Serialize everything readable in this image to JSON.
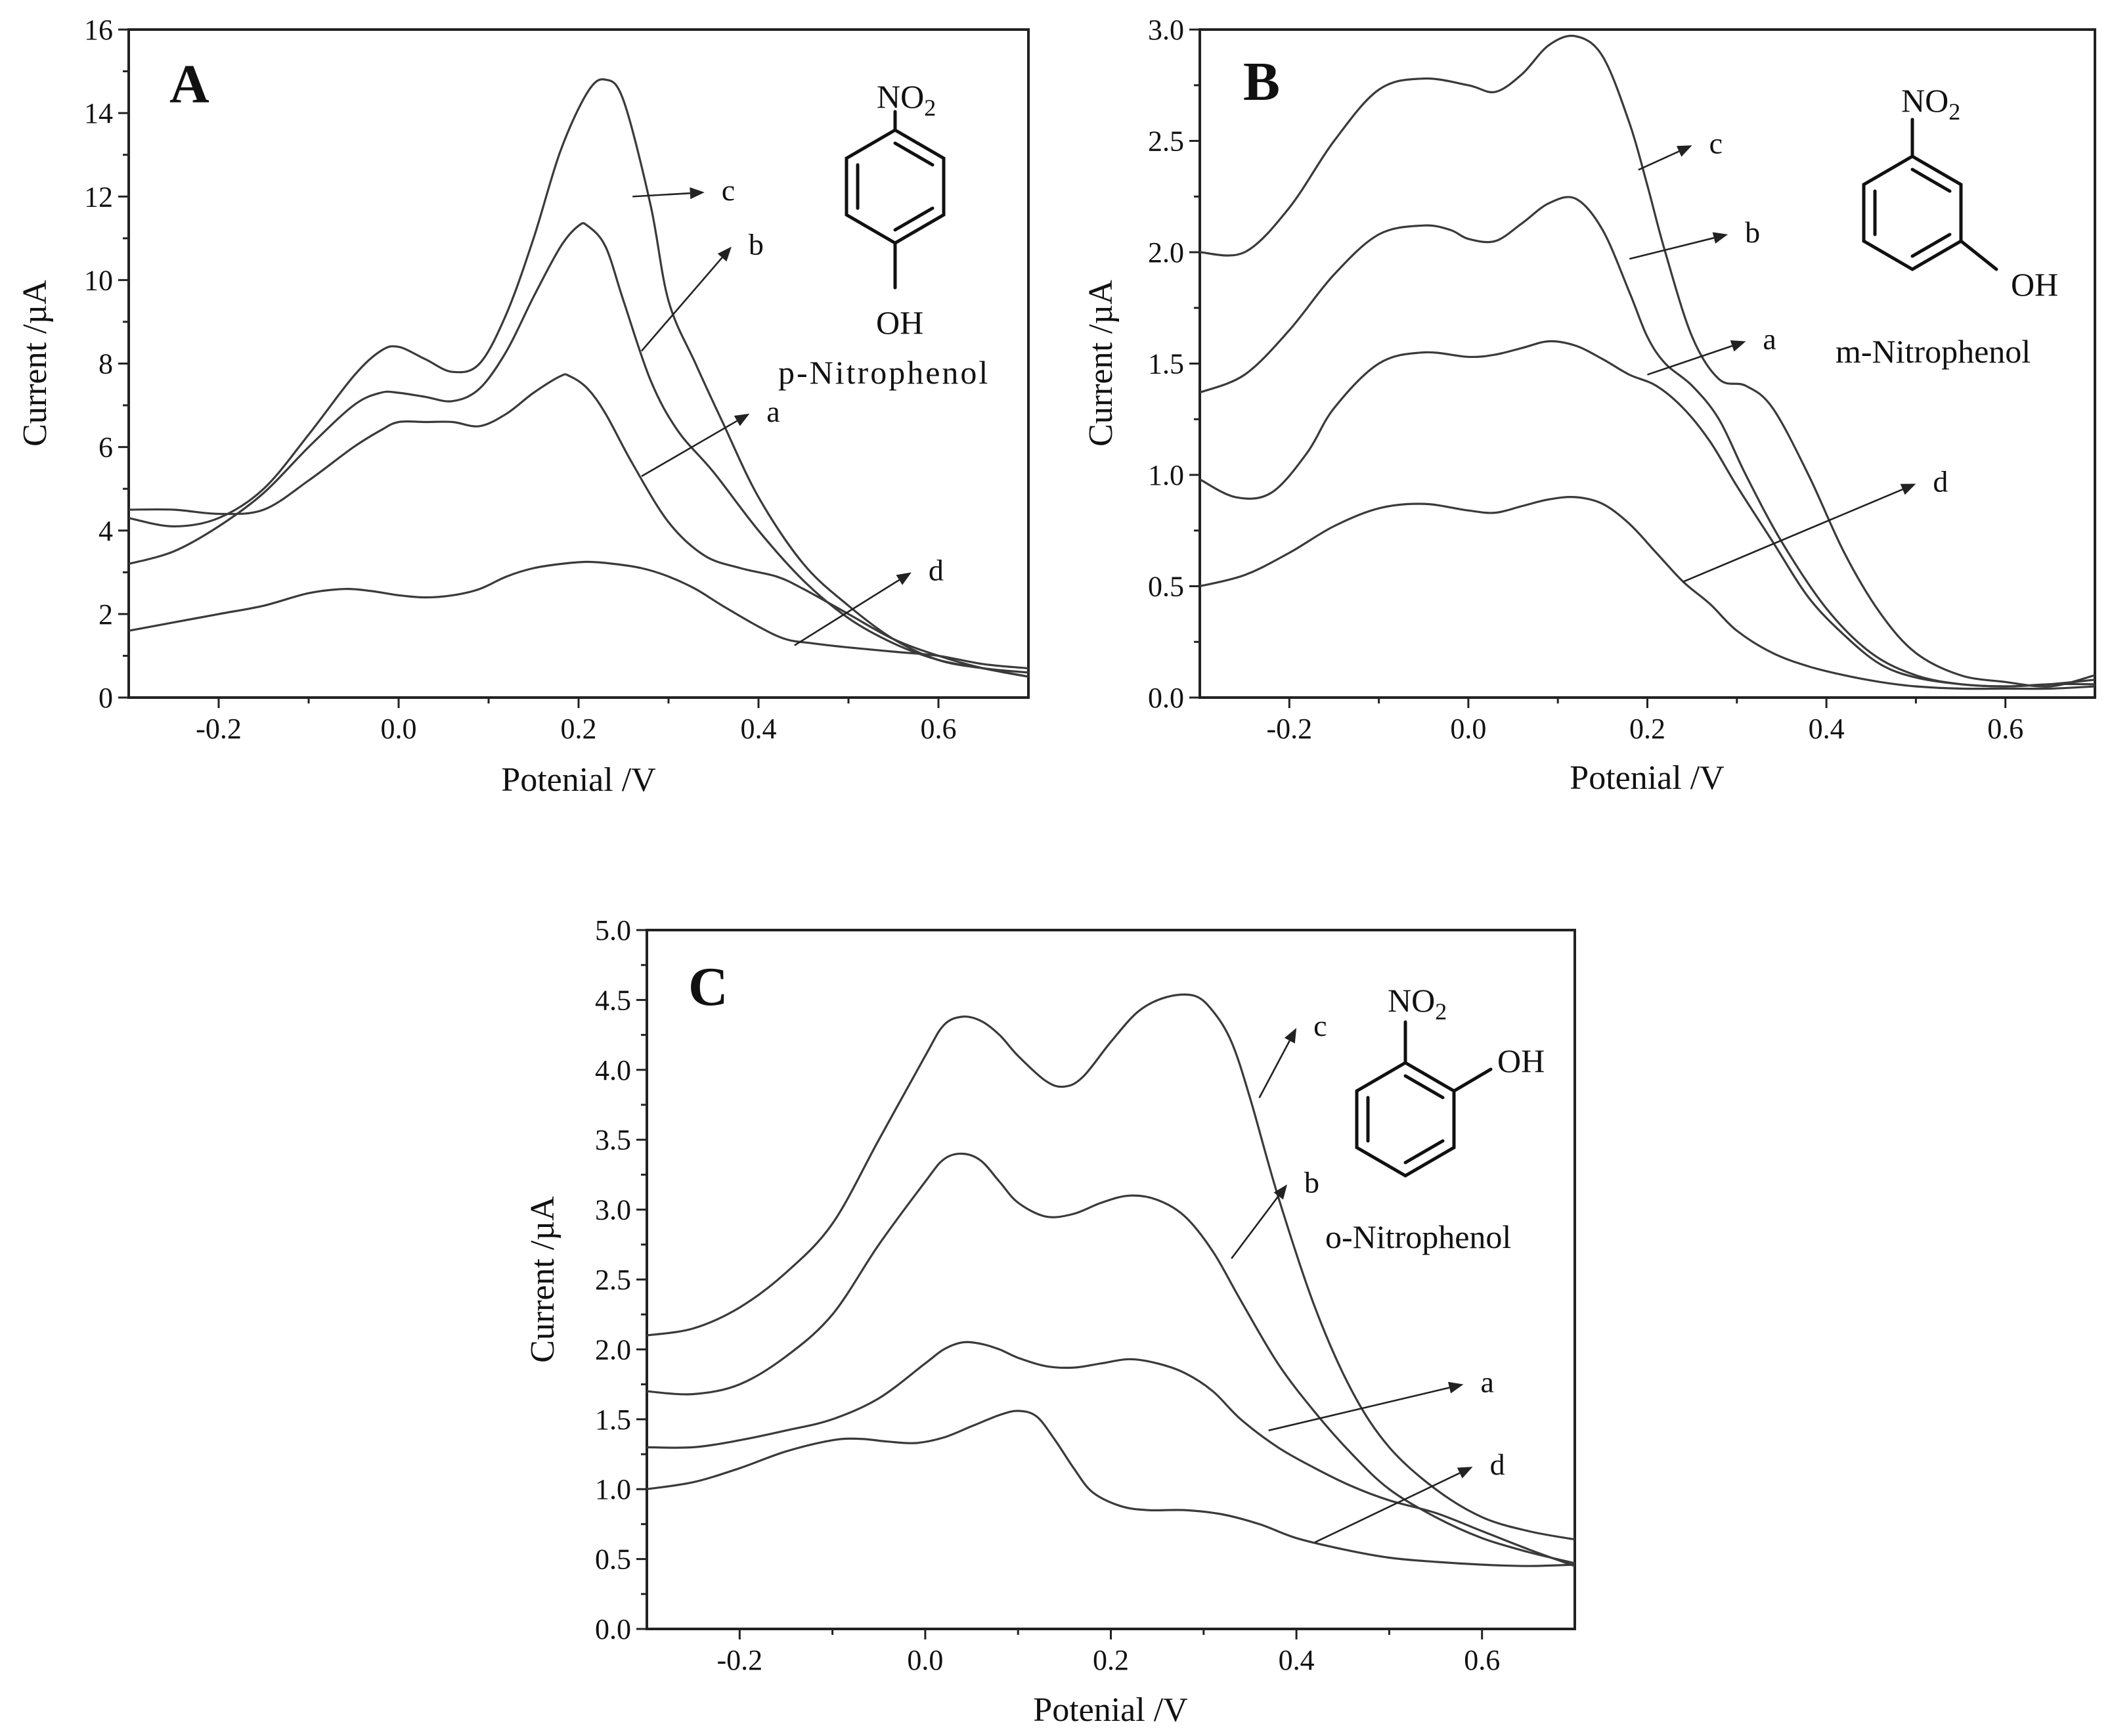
{
  "chart_data": [
    {
      "type": "line",
      "panel_label": "A",
      "xlabel": "Potenial /V",
      "ylabel": "Current /µA",
      "xlim": [
        -0.3,
        0.7
      ],
      "ylim": [
        0,
        16
      ],
      "x_ticks": [
        -0.2,
        0.0,
        0.2,
        0.4,
        0.6
      ],
      "x_tick_labels": [
        "-0.2",
        "0.0",
        "0.2",
        "0.4",
        "0.6"
      ],
      "y_ticks": [
        0,
        2,
        4,
        6,
        8,
        10,
        12,
        14,
        16
      ],
      "y_tick_labels": [
        "0",
        "2",
        "4",
        "6",
        "8",
        "10",
        "12",
        "14",
        "16"
      ],
      "molecule": {
        "substituent": "NO",
        "subscript": "2",
        "hydroxyl": "OH",
        "name": "p-Nitrophenol"
      },
      "series": [
        {
          "name": "c",
          "x": [
            -0.3,
            -0.25,
            -0.2,
            -0.15,
            -0.1,
            -0.05,
            -0.02,
            0.0,
            0.03,
            0.06,
            0.09,
            0.12,
            0.15,
            0.18,
            0.21,
            0.23,
            0.25,
            0.28,
            0.3,
            0.33,
            0.36,
            0.4,
            0.45,
            0.5,
            0.55,
            0.6,
            0.65,
            0.7
          ],
          "y": [
            4.3,
            4.1,
            4.3,
            5.0,
            6.3,
            7.7,
            8.3,
            8.4,
            8.1,
            7.8,
            8.0,
            9.2,
            11.0,
            13.1,
            14.5,
            14.8,
            14.3,
            11.8,
            9.5,
            8.0,
            6.6,
            4.8,
            3.2,
            2.2,
            1.4,
            0.9,
            0.7,
            0.6
          ],
          "label_at": [
            0.26,
            12.0
          ],
          "label_pos": [
            0.34,
            12.1
          ]
        },
        {
          "name": "b",
          "x": [
            -0.3,
            -0.25,
            -0.2,
            -0.15,
            -0.1,
            -0.05,
            -0.02,
            0.0,
            0.03,
            0.06,
            0.09,
            0.12,
            0.15,
            0.18,
            0.2,
            0.21,
            0.23,
            0.25,
            0.28,
            0.31,
            0.35,
            0.4,
            0.45,
            0.5,
            0.55,
            0.6,
            0.65,
            0.7
          ],
          "y": [
            3.2,
            3.5,
            4.1,
            4.9,
            6.0,
            7.0,
            7.3,
            7.3,
            7.2,
            7.1,
            7.4,
            8.3,
            9.6,
            10.8,
            11.3,
            11.3,
            10.8,
            9.5,
            7.6,
            6.4,
            5.4,
            4.0,
            2.8,
            1.9,
            1.3,
            0.9,
            0.7,
            0.5
          ],
          "label_at": [
            0.27,
            8.3
          ],
          "label_pos": [
            0.37,
            10.8
          ]
        },
        {
          "name": "a",
          "x": [
            -0.3,
            -0.25,
            -0.2,
            -0.15,
            -0.1,
            -0.05,
            -0.02,
            0.0,
            0.03,
            0.06,
            0.09,
            0.12,
            0.15,
            0.18,
            0.19,
            0.21,
            0.23,
            0.26,
            0.3,
            0.34,
            0.38,
            0.42,
            0.45,
            0.5,
            0.55,
            0.6,
            0.65,
            0.7
          ],
          "y": [
            4.5,
            4.5,
            4.4,
            4.5,
            5.2,
            6.0,
            6.4,
            6.6,
            6.6,
            6.6,
            6.5,
            6.8,
            7.3,
            7.7,
            7.7,
            7.4,
            6.8,
            5.6,
            4.2,
            3.4,
            3.1,
            2.9,
            2.6,
            2.0,
            1.4,
            1.0,
            0.7,
            0.5
          ],
          "label_at": [
            0.27,
            5.3
          ],
          "label_pos": [
            0.39,
            6.8
          ]
        },
        {
          "name": "d",
          "x": [
            -0.3,
            -0.25,
            -0.2,
            -0.15,
            -0.1,
            -0.06,
            -0.03,
            0.0,
            0.03,
            0.06,
            0.09,
            0.12,
            0.15,
            0.18,
            0.21,
            0.24,
            0.27,
            0.3,
            0.33,
            0.36,
            0.4,
            0.43,
            0.46,
            0.5,
            0.55,
            0.6,
            0.65,
            0.7
          ],
          "y": [
            1.6,
            1.8,
            2.0,
            2.2,
            2.5,
            2.6,
            2.55,
            2.45,
            2.4,
            2.45,
            2.6,
            2.9,
            3.1,
            3.2,
            3.25,
            3.2,
            3.1,
            2.9,
            2.6,
            2.2,
            1.7,
            1.4,
            1.3,
            1.2,
            1.1,
            1.0,
            0.8,
            0.7
          ],
          "label_at": [
            0.44,
            1.25
          ],
          "label_pos": [
            0.57,
            3.0
          ]
        }
      ]
    },
    {
      "type": "line",
      "panel_label": "B",
      "xlabel": "Potenial /V",
      "ylabel": "Current /µA",
      "xlim": [
        -0.3,
        0.7
      ],
      "ylim": [
        0.0,
        3.0
      ],
      "x_ticks": [
        -0.2,
        0.0,
        0.2,
        0.4,
        0.6
      ],
      "x_tick_labels": [
        "-0.2",
        "0.0",
        "0.2",
        "0.4",
        "0.6"
      ],
      "y_ticks": [
        0.0,
        0.5,
        1.0,
        1.5,
        2.0,
        2.5,
        3.0
      ],
      "y_tick_labels": [
        "0.0",
        "0.5",
        "1.0",
        "1.5",
        "2.0",
        "2.5",
        "3.0"
      ],
      "molecule": {
        "substituent": "NO",
        "subscript": "2",
        "hydroxyl": "OH",
        "name": "m-Nitrophenol"
      },
      "series": [
        {
          "name": "c",
          "x": [
            -0.3,
            -0.25,
            -0.2,
            -0.15,
            -0.1,
            -0.05,
            0.0,
            0.03,
            0.06,
            0.09,
            0.12,
            0.15,
            0.18,
            0.2,
            0.22,
            0.25,
            0.28,
            0.31,
            0.34,
            0.38,
            0.42,
            0.46,
            0.5,
            0.55,
            0.6,
            0.65,
            0.7
          ],
          "y": [
            2.0,
            2.0,
            2.2,
            2.5,
            2.73,
            2.78,
            2.75,
            2.72,
            2.8,
            2.93,
            2.97,
            2.88,
            2.58,
            2.3,
            2.0,
            1.62,
            1.43,
            1.4,
            1.3,
            1.0,
            0.65,
            0.38,
            0.2,
            0.1,
            0.07,
            0.05,
            0.1
          ],
          "label_at": [
            0.19,
            2.37
          ],
          "label_pos": [
            0.25,
            2.48
          ]
        },
        {
          "name": "b",
          "x": [
            -0.3,
            -0.25,
            -0.2,
            -0.15,
            -0.1,
            -0.05,
            -0.02,
            0.0,
            0.03,
            0.06,
            0.09,
            0.12,
            0.15,
            0.18,
            0.2,
            0.22,
            0.25,
            0.28,
            0.31,
            0.35,
            0.4,
            0.45,
            0.5,
            0.55,
            0.6,
            0.65,
            0.7
          ],
          "y": [
            1.37,
            1.45,
            1.65,
            1.9,
            2.08,
            2.12,
            2.1,
            2.06,
            2.05,
            2.13,
            2.22,
            2.24,
            2.1,
            1.82,
            1.62,
            1.5,
            1.4,
            1.25,
            1.0,
            0.7,
            0.4,
            0.2,
            0.1,
            0.06,
            0.05,
            0.06,
            0.06
          ],
          "label_at": [
            0.18,
            1.97
          ],
          "label_pos": [
            0.29,
            2.08
          ]
        },
        {
          "name": "a",
          "x": [
            -0.3,
            -0.26,
            -0.22,
            -0.18,
            -0.15,
            -0.1,
            -0.05,
            0.0,
            0.03,
            0.06,
            0.09,
            0.12,
            0.15,
            0.18,
            0.21,
            0.24,
            0.27,
            0.3,
            0.34,
            0.38,
            0.42,
            0.46,
            0.5,
            0.55,
            0.6,
            0.65,
            0.7
          ],
          "y": [
            0.98,
            0.9,
            0.92,
            1.1,
            1.3,
            1.5,
            1.55,
            1.53,
            1.54,
            1.57,
            1.6,
            1.58,
            1.52,
            1.45,
            1.4,
            1.3,
            1.15,
            0.95,
            0.7,
            0.45,
            0.28,
            0.15,
            0.09,
            0.06,
            0.05,
            0.06,
            0.08
          ],
          "label_at": [
            0.2,
            1.45
          ],
          "label_pos": [
            0.31,
            1.6
          ]
        },
        {
          "name": "d",
          "x": [
            -0.3,
            -0.25,
            -0.2,
            -0.15,
            -0.1,
            -0.05,
            0.0,
            0.03,
            0.06,
            0.09,
            0.12,
            0.15,
            0.18,
            0.21,
            0.24,
            0.27,
            0.3,
            0.34,
            0.38,
            0.42,
            0.46,
            0.5,
            0.55,
            0.6,
            0.65,
            0.7
          ],
          "y": [
            0.5,
            0.55,
            0.65,
            0.77,
            0.85,
            0.87,
            0.84,
            0.83,
            0.86,
            0.89,
            0.9,
            0.87,
            0.78,
            0.65,
            0.52,
            0.42,
            0.3,
            0.2,
            0.14,
            0.1,
            0.07,
            0.05,
            0.04,
            0.04,
            0.04,
            0.05
          ],
          "label_at": [
            0.24,
            0.52
          ],
          "label_pos": [
            0.5,
            0.96
          ]
        }
      ]
    },
    {
      "type": "line",
      "panel_label": "C",
      "xlabel": "Potenial /V",
      "ylabel": "Current /µA",
      "xlim": [
        -0.3,
        0.7
      ],
      "ylim": [
        0.0,
        5.0
      ],
      "x_ticks": [
        -0.2,
        0.0,
        0.2,
        0.4,
        0.6
      ],
      "x_tick_labels": [
        "-0.2",
        "0.0",
        "0.2",
        "0.4",
        "0.6"
      ],
      "y_ticks": [
        0.0,
        0.5,
        1.0,
        1.5,
        2.0,
        2.5,
        3.0,
        3.5,
        4.0,
        4.5,
        5.0
      ],
      "y_tick_labels": [
        "0.0",
        "0.5",
        "1.0",
        "1.5",
        "2.0",
        "2.5",
        "3.0",
        "3.5",
        "4.0",
        "4.5",
        "5.0"
      ],
      "molecule": {
        "substituent": "NO",
        "subscript": "2",
        "hydroxyl": "OH",
        "name": "o-Nitrophenol"
      },
      "series": [
        {
          "name": "c",
          "x": [
            -0.3,
            -0.25,
            -0.2,
            -0.15,
            -0.1,
            -0.05,
            0.0,
            0.02,
            0.04,
            0.06,
            0.08,
            0.1,
            0.13,
            0.15,
            0.17,
            0.2,
            0.23,
            0.26,
            0.29,
            0.31,
            0.33,
            0.35,
            0.38,
            0.42,
            0.46,
            0.5,
            0.55,
            0.6,
            0.65,
            0.7
          ],
          "y": [
            2.1,
            2.15,
            2.3,
            2.55,
            2.9,
            3.5,
            4.1,
            4.32,
            4.38,
            4.35,
            4.25,
            4.1,
            3.92,
            3.88,
            3.95,
            4.2,
            4.42,
            4.52,
            4.53,
            4.42,
            4.2,
            3.8,
            3.1,
            2.3,
            1.7,
            1.3,
            1.0,
            0.8,
            0.7,
            0.64
          ],
          "label_at": [
            0.36,
            3.8
          ],
          "label_pos": [
            0.4,
            4.3
          ]
        },
        {
          "name": "b",
          "x": [
            -0.3,
            -0.25,
            -0.2,
            -0.15,
            -0.1,
            -0.05,
            0.0,
            0.02,
            0.04,
            0.06,
            0.08,
            0.1,
            0.13,
            0.16,
            0.19,
            0.22,
            0.25,
            0.28,
            0.31,
            0.34,
            0.38,
            0.42,
            0.46,
            0.5,
            0.55,
            0.6,
            0.65,
            0.7
          ],
          "y": [
            1.7,
            1.68,
            1.75,
            1.95,
            2.25,
            2.75,
            3.2,
            3.36,
            3.4,
            3.35,
            3.2,
            3.05,
            2.95,
            2.97,
            3.05,
            3.1,
            3.07,
            2.95,
            2.7,
            2.35,
            1.9,
            1.55,
            1.25,
            1.0,
            0.8,
            0.65,
            0.55,
            0.47
          ],
          "label_at": [
            0.33,
            2.65
          ],
          "label_pos": [
            0.39,
            3.18
          ]
        },
        {
          "name": "a",
          "x": [
            -0.3,
            -0.25,
            -0.2,
            -0.15,
            -0.1,
            -0.05,
            0.0,
            0.02,
            0.04,
            0.06,
            0.08,
            0.1,
            0.13,
            0.16,
            0.19,
            0.22,
            0.25,
            0.28,
            0.31,
            0.34,
            0.38,
            0.42,
            0.46,
            0.5,
            0.55,
            0.6,
            0.65,
            0.7
          ],
          "y": [
            1.3,
            1.3,
            1.35,
            1.42,
            1.5,
            1.65,
            1.9,
            2.0,
            2.05,
            2.04,
            2.0,
            1.94,
            1.88,
            1.87,
            1.9,
            1.93,
            1.9,
            1.83,
            1.7,
            1.5,
            1.3,
            1.15,
            1.02,
            0.92,
            0.83,
            0.7,
            0.57,
            0.45
          ],
          "label_at": [
            0.37,
            1.42
          ],
          "label_pos": [
            0.58,
            1.75
          ]
        },
        {
          "name": "d",
          "x": [
            -0.3,
            -0.25,
            -0.2,
            -0.15,
            -0.1,
            -0.07,
            -0.04,
            -0.01,
            0.02,
            0.05,
            0.08,
            0.1,
            0.12,
            0.14,
            0.16,
            0.18,
            0.21,
            0.24,
            0.28,
            0.32,
            0.36,
            0.4,
            0.45,
            0.5,
            0.55,
            0.6,
            0.65,
            0.7
          ],
          "y": [
            1.0,
            1.05,
            1.15,
            1.27,
            1.35,
            1.36,
            1.34,
            1.33,
            1.37,
            1.45,
            1.53,
            1.56,
            1.52,
            1.35,
            1.15,
            0.98,
            0.88,
            0.85,
            0.85,
            0.82,
            0.75,
            0.65,
            0.57,
            0.51,
            0.48,
            0.46,
            0.45,
            0.46
          ],
          "label_at": [
            0.42,
            0.62
          ],
          "label_pos": [
            0.59,
            1.16
          ]
        }
      ]
    }
  ]
}
